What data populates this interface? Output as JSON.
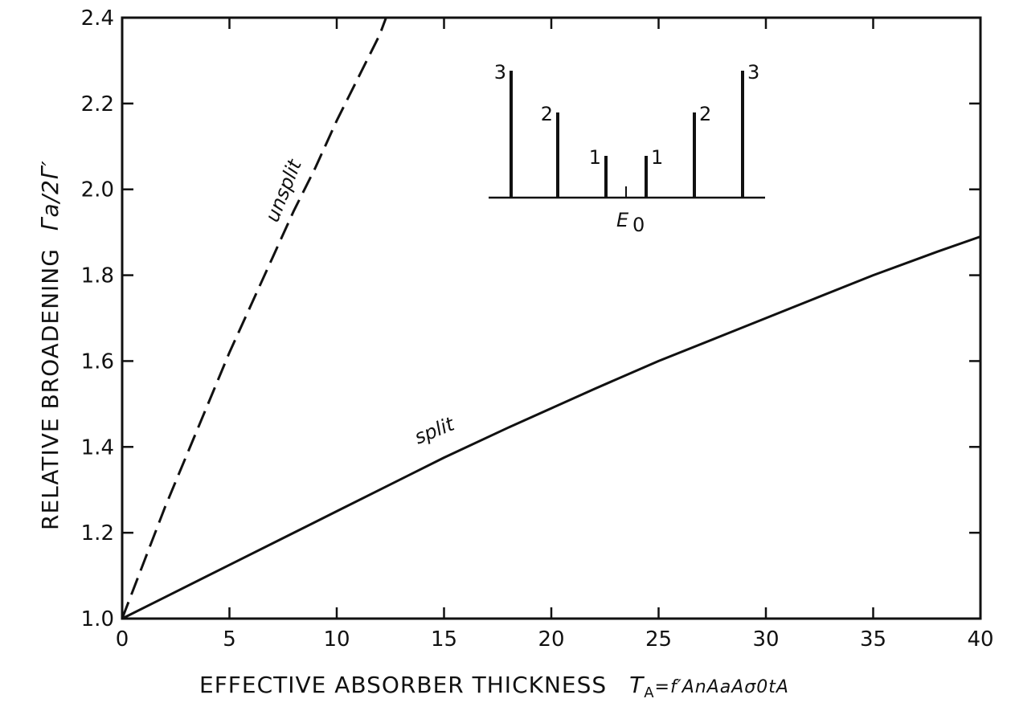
{
  "chart_data": {
    "type": "line",
    "xlabel": "EFFECTIVE ABSORBER THICKNESS",
    "xlabel_symbol": "T",
    "xlabel_symbol_sub": "A",
    "xlabel_formula": "=f′AnAaAσ0tA",
    "ylabel": "RELATIVE BROADENING",
    "ylabel_symbol": "Γa/2Γ′",
    "xlim": [
      0,
      40
    ],
    "ylim": [
      1.0,
      2.4
    ],
    "x_ticks": [
      0,
      5,
      10,
      15,
      20,
      25,
      30,
      35,
      40
    ],
    "y_ticks": [
      1.0,
      1.2,
      1.4,
      1.6,
      1.8,
      2.0,
      2.2,
      2.4
    ],
    "y_tick_labels": [
      "1.0",
      "1.2",
      "1.4",
      "1.6",
      "1.8",
      "2.0",
      "2.2",
      "2.4"
    ],
    "grid": false,
    "series": [
      {
        "name": "unsplit",
        "style": "dashed",
        "x": [
          0,
          1,
          2,
          3,
          4,
          5,
          6,
          7,
          8,
          9,
          10,
          11,
          12,
          12.3
        ],
        "y": [
          1.0,
          1.13,
          1.26,
          1.38,
          1.5,
          1.62,
          1.73,
          1.84,
          1.95,
          2.05,
          2.16,
          2.26,
          2.36,
          2.4
        ]
      },
      {
        "name": "split",
        "style": "solid",
        "x": [
          0,
          2,
          5,
          8,
          10,
          12,
          15,
          18,
          20,
          22,
          25,
          28,
          30,
          32,
          35,
          38,
          40
        ],
        "y": [
          1.0,
          1.05,
          1.125,
          1.2,
          1.25,
          1.3,
          1.375,
          1.445,
          1.49,
          1.535,
          1.6,
          1.66,
          1.7,
          1.74,
          1.8,
          1.855,
          1.89
        ]
      }
    ],
    "inset": {
      "center_label": "E",
      "center_label_sub": "0",
      "lines": [
        {
          "label": "3",
          "height": 3
        },
        {
          "label": "2",
          "height": 2
        },
        {
          "label": "1",
          "height": 1
        },
        {
          "label": "1",
          "height": 1
        },
        {
          "label": "2",
          "height": 2
        },
        {
          "label": "3",
          "height": 3
        }
      ]
    }
  }
}
